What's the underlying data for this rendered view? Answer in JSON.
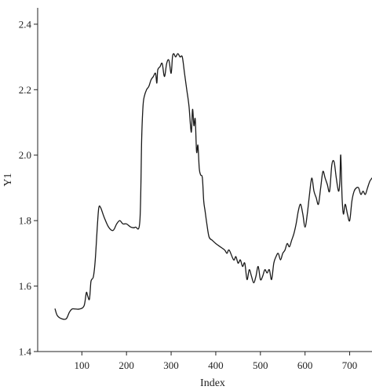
{
  "chart_data": {
    "type": "line",
    "title": "",
    "xlabel": "Index",
    "ylabel": "Y1",
    "xlim": [
      1,
      750
    ],
    "ylim": [
      1.4,
      2.45
    ],
    "x_ticks": [
      100,
      200,
      300,
      400,
      500,
      600,
      700
    ],
    "y_ticks": [
      1.4,
      1.6,
      1.8,
      2.0,
      2.2,
      2.4
    ],
    "x_tick_labels": [
      "100",
      "200",
      "300",
      "400",
      "500",
      "600",
      "700"
    ],
    "y_tick_labels": [
      "1.4",
      "1.6",
      "1.8",
      "2.0",
      "2.2",
      "2.4"
    ],
    "grid": false,
    "series": [
      {
        "color": "#1a1a1a",
        "x": [
          40,
          45,
          55,
          65,
          72,
          78,
          85,
          95,
          105,
          110,
          113,
          117,
          120,
          122,
          126,
          130,
          135,
          138,
          142,
          150,
          160,
          170,
          178,
          185,
          192,
          200,
          210,
          220,
          230,
          234,
          237,
          240,
          245,
          250,
          255,
          260,
          265,
          268,
          270,
          275,
          280,
          285,
          290,
          295,
          300,
          303,
          306,
          310,
          315,
          320,
          325,
          330,
          335,
          340,
          345,
          348,
          351,
          354,
          357,
          360,
          363,
          366,
          370,
          373,
          376,
          380,
          385,
          392,
          400,
          410,
          420,
          425,
          430,
          440,
          445,
          450,
          455,
          460,
          465,
          470,
          475,
          480,
          485,
          490,
          495,
          500,
          505,
          510,
          515,
          520,
          525,
          530,
          535,
          540,
          545,
          550,
          555,
          560,
          565,
          570,
          575,
          580,
          585,
          590,
          595,
          600,
          605,
          610,
          615,
          620,
          625,
          630,
          635,
          640,
          645,
          650,
          655,
          660,
          665,
          670,
          675,
          678,
          680,
          683,
          686,
          690,
          695,
          700,
          705,
          710,
          715,
          720,
          725,
          730,
          735,
          740,
          745,
          750
        ],
        "values": [
          1.53,
          1.51,
          1.5,
          1.5,
          1.52,
          1.53,
          1.53,
          1.53,
          1.54,
          1.58,
          1.57,
          1.56,
          1.61,
          1.62,
          1.63,
          1.68,
          1.79,
          1.84,
          1.84,
          1.81,
          1.78,
          1.77,
          1.79,
          1.8,
          1.79,
          1.79,
          1.78,
          1.78,
          1.8,
          2.05,
          2.15,
          2.18,
          2.2,
          2.21,
          2.23,
          2.24,
          2.25,
          2.22,
          2.26,
          2.27,
          2.28,
          2.24,
          2.28,
          2.29,
          2.25,
          2.3,
          2.31,
          2.3,
          2.31,
          2.3,
          2.3,
          2.25,
          2.2,
          2.15,
          2.07,
          2.14,
          2.09,
          2.11,
          2.01,
          2.03,
          1.96,
          1.94,
          1.93,
          1.86,
          1.83,
          1.79,
          1.75,
          1.74,
          1.73,
          1.72,
          1.71,
          1.7,
          1.71,
          1.68,
          1.69,
          1.67,
          1.68,
          1.66,
          1.67,
          1.62,
          1.65,
          1.63,
          1.61,
          1.63,
          1.66,
          1.62,
          1.63,
          1.65,
          1.64,
          1.65,
          1.62,
          1.67,
          1.69,
          1.7,
          1.68,
          1.7,
          1.71,
          1.73,
          1.72,
          1.74,
          1.76,
          1.79,
          1.83,
          1.85,
          1.82,
          1.78,
          1.82,
          1.88,
          1.93,
          1.89,
          1.87,
          1.85,
          1.9,
          1.95,
          1.93,
          1.91,
          1.89,
          1.97,
          1.98,
          1.93,
          1.89,
          1.92,
          2.0,
          1.87,
          1.82,
          1.85,
          1.82,
          1.8,
          1.86,
          1.89,
          1.9,
          1.9,
          1.88,
          1.89,
          1.88,
          1.9,
          1.92,
          1.93
        ]
      }
    ]
  }
}
